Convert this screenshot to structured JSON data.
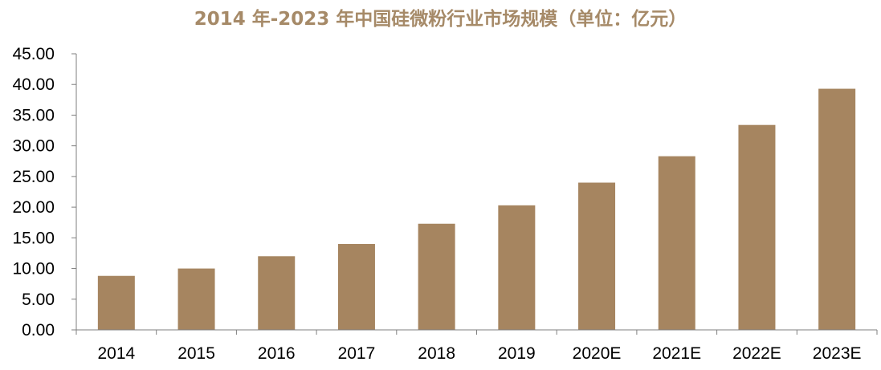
{
  "chart_data": {
    "type": "bar",
    "title": "2014 年-2023 年中国硅微粉行业市场规模（单位：亿元）",
    "categories": [
      "2014",
      "2015",
      "2016",
      "2017",
      "2018",
      "2019",
      "2020E",
      "2021E",
      "2022E",
      "2023E"
    ],
    "values": [
      8.8,
      10.0,
      12.0,
      14.0,
      17.3,
      20.3,
      24.0,
      28.3,
      33.4,
      39.3
    ],
    "ylim": [
      0,
      45
    ],
    "ytick_labels": [
      "0.00",
      "5.00",
      "10.00",
      "15.00",
      "20.00",
      "25.00",
      "30.00",
      "35.00",
      "40.00",
      "45.00"
    ],
    "xlabel": "",
    "ylabel": "",
    "grid": false,
    "legend": "none",
    "bar_color": "#a68560",
    "title_color": "#a68a68"
  }
}
